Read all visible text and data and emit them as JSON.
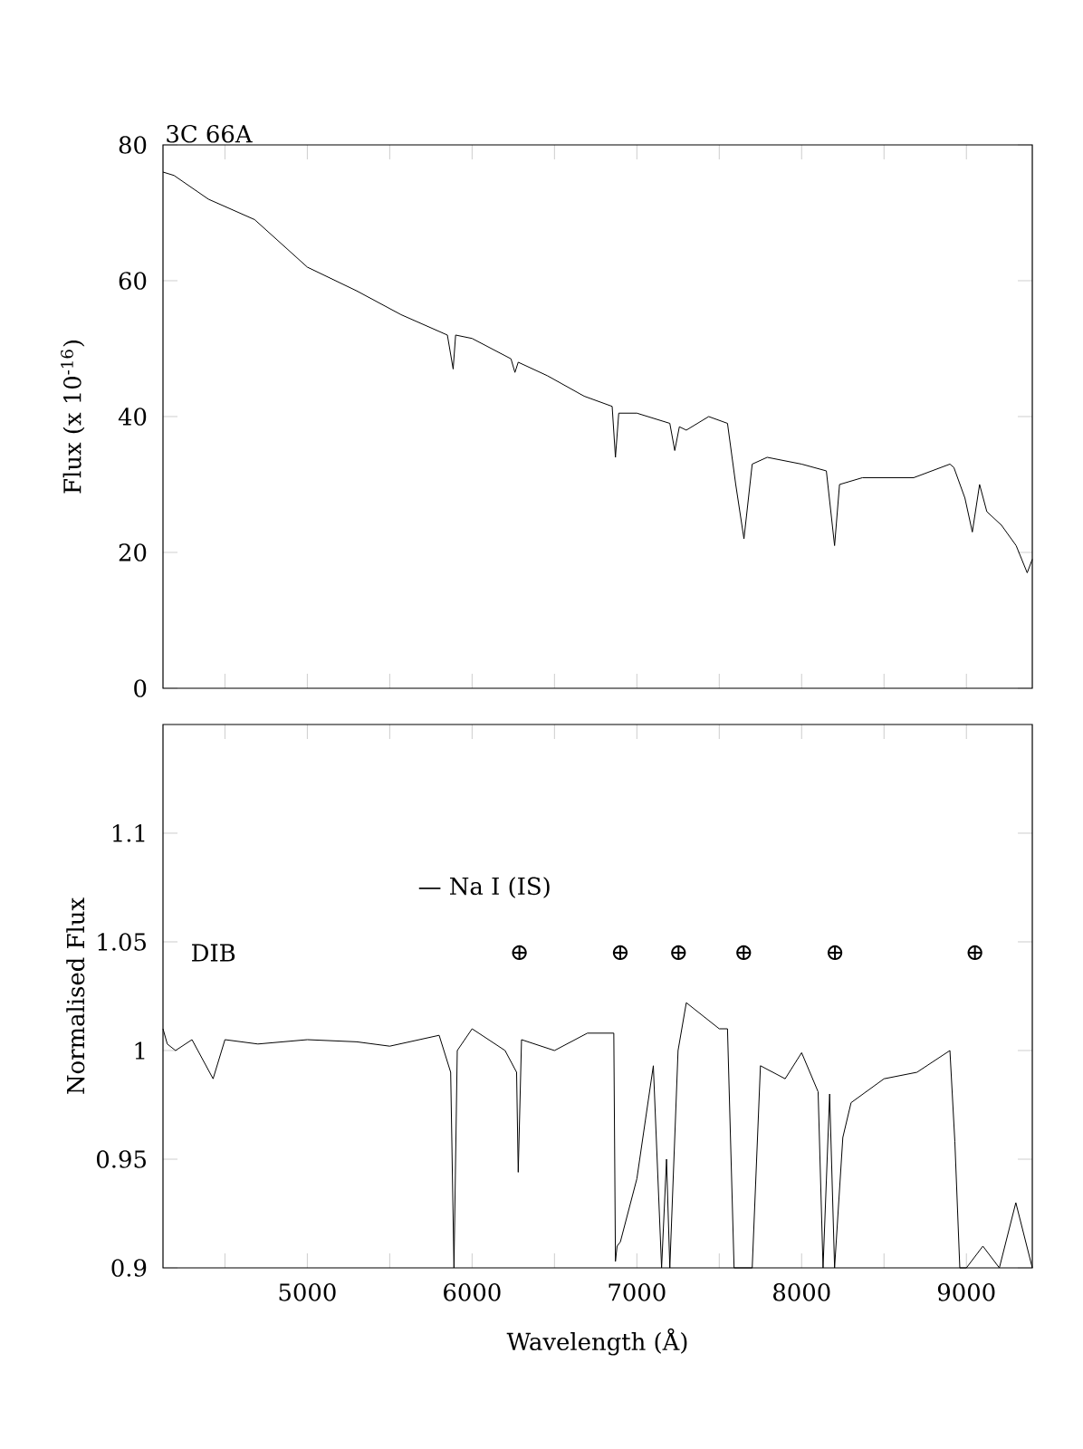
{
  "chart_data": [
    {
      "type": "line",
      "ylabel": "Flux (x 10$^{-16}$)",
      "annotations": [
        "3C 66A"
      ],
      "tick_labels": "y",
      "xlim": [
        4124,
        9400
      ],
      "xticks": [
        {
          "value": 4500,
          "label": null
        },
        5000,
        {
          "value": 5500,
          "label": null
        },
        6000,
        {
          "value": 6500,
          "label": null
        },
        7000,
        {
          "value": 7500,
          "label": null
        },
        8000,
        {
          "value": 8500,
          "label": null
        },
        9000
      ],
      "ylim": [
        0,
        80
      ],
      "yticks": [
        0,
        20,
        40,
        60,
        80
      ],
      "color": "#000000",
      "x": [
        4124,
        4191,
        4400,
        4680,
        5000,
        5300,
        5569,
        5850,
        5885,
        5900,
        6000,
        6236,
        6260,
        6280,
        6458,
        6680,
        6850,
        6870,
        6890,
        7000,
        7200,
        7230,
        7258,
        7300,
        7436,
        7550,
        7600,
        7650,
        7700,
        7791,
        8000,
        8150,
        8200,
        8230,
        8369,
        8680,
        8900,
        8924,
        8991,
        9036,
        9080,
        9124,
        9213,
        9302,
        9369,
        9400
      ],
      "values": [
        76,
        75.5,
        72,
        69,
        62,
        58.5,
        55,
        52,
        47,
        52,
        51.5,
        48.5,
        46.5,
        48,
        46,
        43,
        41.5,
        34,
        40.5,
        40.5,
        39,
        35,
        38.5,
        38,
        40,
        39,
        30,
        22,
        33,
        34,
        33,
        32,
        21,
        30,
        31,
        31,
        33,
        32.5,
        28,
        23,
        30,
        26,
        24,
        21,
        17,
        19
      ]
    },
    {
      "type": "line",
      "xlabel": "Wavelength (Å)",
      "ylabel": "Normalised Flux",
      "annotations": [
        "DIB",
        "— Na I (IS)",
        "⊕",
        "⊕",
        "⊕",
        "⊕",
        "⊕",
        "⊕"
      ],
      "xlim": [
        4124,
        9400
      ],
      "xticks": [
        {
          "value": 4500,
          "label": null
        },
        5000,
        {
          "value": 5500,
          "label": null
        },
        6000,
        {
          "value": 6500,
          "label": null
        },
        7000,
        {
          "value": 7500,
          "label": null
        },
        8000,
        {
          "value": 8500,
          "label": null
        },
        9000
      ],
      "ylim": [
        0.9,
        1.15
      ],
      "yticks": [
        0.9,
        0.95,
        1,
        1.05,
        1.1
      ],
      "color": "#000000",
      "x": [
        4124,
        4150,
        4200,
        4300,
        4428,
        4500,
        4700,
        5000,
        5300,
        5500,
        5800,
        5870,
        5890,
        5910,
        6000,
        6200,
        6270,
        6280,
        6300,
        6500,
        6700,
        6860,
        6870,
        6880,
        6900,
        7000,
        7100,
        7150,
        7180,
        7200,
        7250,
        7300,
        7500,
        7550,
        7590,
        7650,
        7700,
        7750,
        7900,
        8000,
        8100,
        8130,
        8170,
        8200,
        8250,
        8300,
        8500,
        8700,
        8900,
        8930,
        8960,
        9000,
        9100,
        9200,
        9300,
        9400
      ],
      "values": [
        1.01,
        1.003,
        1.0,
        1.005,
        0.987,
        1.005,
        1.003,
        1.005,
        1.004,
        1.002,
        1.007,
        0.99,
        0.9,
        1.0,
        1.01,
        1.0,
        0.99,
        0.944,
        1.005,
        1.0,
        1.008,
        1.008,
        0.903,
        0.91,
        0.912,
        0.941,
        0.993,
        0.9,
        0.95,
        0.9,
        1.0,
        1.022,
        1.01,
        1.01,
        0.9,
        0.9,
        0.9,
        0.993,
        0.987,
        0.999,
        0.981,
        0.9,
        0.98,
        0.9,
        0.96,
        0.976,
        0.987,
        0.99,
        1.0,
        0.958,
        0.9,
        0.9,
        0.91,
        0.9,
        0.93,
        0.9
      ]
    }
  ]
}
